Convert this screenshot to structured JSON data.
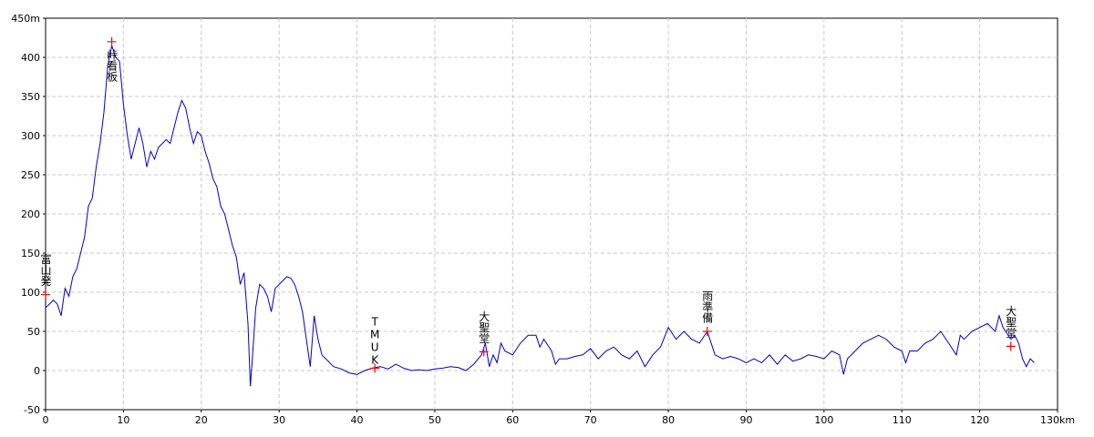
{
  "chart_data": {
    "type": "line",
    "x": [
      0,
      0.5,
      1,
      1.5,
      2,
      2.5,
      3,
      3.5,
      4,
      5,
      5.5,
      6,
      6.5,
      7,
      7.5,
      8,
      8.5,
      9,
      9.5,
      10,
      10.5,
      11,
      11.5,
      12,
      12.5,
      13,
      13.5,
      14,
      14.5,
      15,
      15.5,
      16,
      16.5,
      17,
      17.5,
      18,
      18.5,
      19,
      19.5,
      20,
      20.5,
      21,
      21.5,
      22,
      22.5,
      23,
      23.5,
      24,
      24.5,
      25,
      25.5,
      26,
      26.3,
      26.6,
      27,
      27.5,
      28,
      28.5,
      29,
      29.5,
      30,
      30.5,
      31,
      31.5,
      32,
      32.5,
      33,
      33.5,
      34,
      34.5,
      35,
      35.5,
      36,
      37,
      38,
      39,
      40,
      41,
      42,
      43,
      44,
      45,
      46,
      47,
      48,
      49,
      50,
      51,
      52,
      53,
      54,
      55,
      56,
      56.5,
      57,
      57.5,
      58,
      58.5,
      59,
      60,
      61,
      62,
      63,
      63.5,
      64,
      65,
      65.5,
      66,
      67,
      68,
      69,
      70,
      71,
      72,
      73,
      74,
      75,
      76,
      77,
      78,
      79,
      80,
      81,
      82,
      83,
      84,
      85,
      86,
      87,
      88,
      89,
      90,
      91,
      92,
      93,
      94,
      95,
      96,
      97,
      98,
      99,
      100,
      101,
      102,
      102.5,
      103,
      104,
      105,
      106,
      107,
      108,
      109,
      110,
      110.5,
      111,
      112,
      113,
      114,
      115,
      116,
      117,
      117.5,
      118,
      119,
      120,
      121,
      121.5,
      122,
      122.5,
      123,
      124,
      124.5,
      125,
      125.5,
      126,
      126.5,
      127
    ],
    "values": [
      80,
      85,
      90,
      85,
      70,
      105,
      95,
      120,
      130,
      170,
      210,
      220,
      260,
      290,
      330,
      390,
      415,
      400,
      395,
      340,
      300,
      270,
      290,
      310,
      290,
      260,
      280,
      270,
      285,
      290,
      295,
      290,
      310,
      330,
      345,
      335,
      310,
      290,
      305,
      300,
      280,
      265,
      245,
      235,
      210,
      200,
      180,
      160,
      145,
      110,
      125,
      60,
      -20,
      20,
      80,
      110,
      105,
      95,
      75,
      105,
      110,
      115,
      120,
      118,
      110,
      95,
      75,
      40,
      5,
      70,
      40,
      20,
      15,
      5,
      2,
      -3,
      -5,
      0,
      3,
      5,
      2,
      8,
      3,
      0,
      1,
      0,
      2,
      3,
      5,
      4,
      0,
      8,
      20,
      35,
      5,
      20,
      10,
      35,
      25,
      20,
      35,
      45,
      45,
      30,
      40,
      25,
      8,
      15,
      15,
      18,
      20,
      28,
      15,
      25,
      30,
      20,
      15,
      25,
      5,
      20,
      30,
      55,
      40,
      50,
      40,
      35,
      50,
      20,
      15,
      18,
      15,
      10,
      15,
      10,
      20,
      8,
      20,
      12,
      15,
      20,
      18,
      15,
      25,
      20,
      -5,
      15,
      25,
      35,
      40,
      45,
      40,
      30,
      25,
      10,
      25,
      25,
      35,
      40,
      50,
      35,
      20,
      45,
      40,
      50,
      55,
      60,
      55,
      50,
      70,
      55,
      40,
      45,
      35,
      15,
      5,
      15,
      10
    ],
    "color": "#0000cc",
    "xlim": [
      0,
      130
    ],
    "ylim": [
      -50,
      450
    ],
    "xticks": [
      0,
      10,
      20,
      30,
      40,
      50,
      60,
      70,
      80,
      90,
      100,
      110,
      120,
      {
        "value": 130,
        "label": "130km"
      }
    ],
    "yticks": [
      -50,
      0,
      50,
      100,
      150,
      200,
      250,
      300,
      350,
      400,
      {
        "value": 450,
        "label": "450m"
      }
    ],
    "grid": true,
    "annotations": [
      {
        "label": "富山発",
        "x": 0,
        "y": 97
      },
      {
        "label": "峠看板",
        "x": 8.5,
        "y": 420
      },
      {
        "label": "TMUK",
        "x": 42.3,
        "y": 3
      },
      {
        "label": "大聖堂",
        "x": 56.3,
        "y": 24
      },
      {
        "label": "雨準備",
        "x": 85,
        "y": 50
      },
      {
        "label": "大聖堂",
        "x": 124,
        "y": 31
      }
    ],
    "marker_color": "#ff0000",
    "label_color": "#008000"
  }
}
